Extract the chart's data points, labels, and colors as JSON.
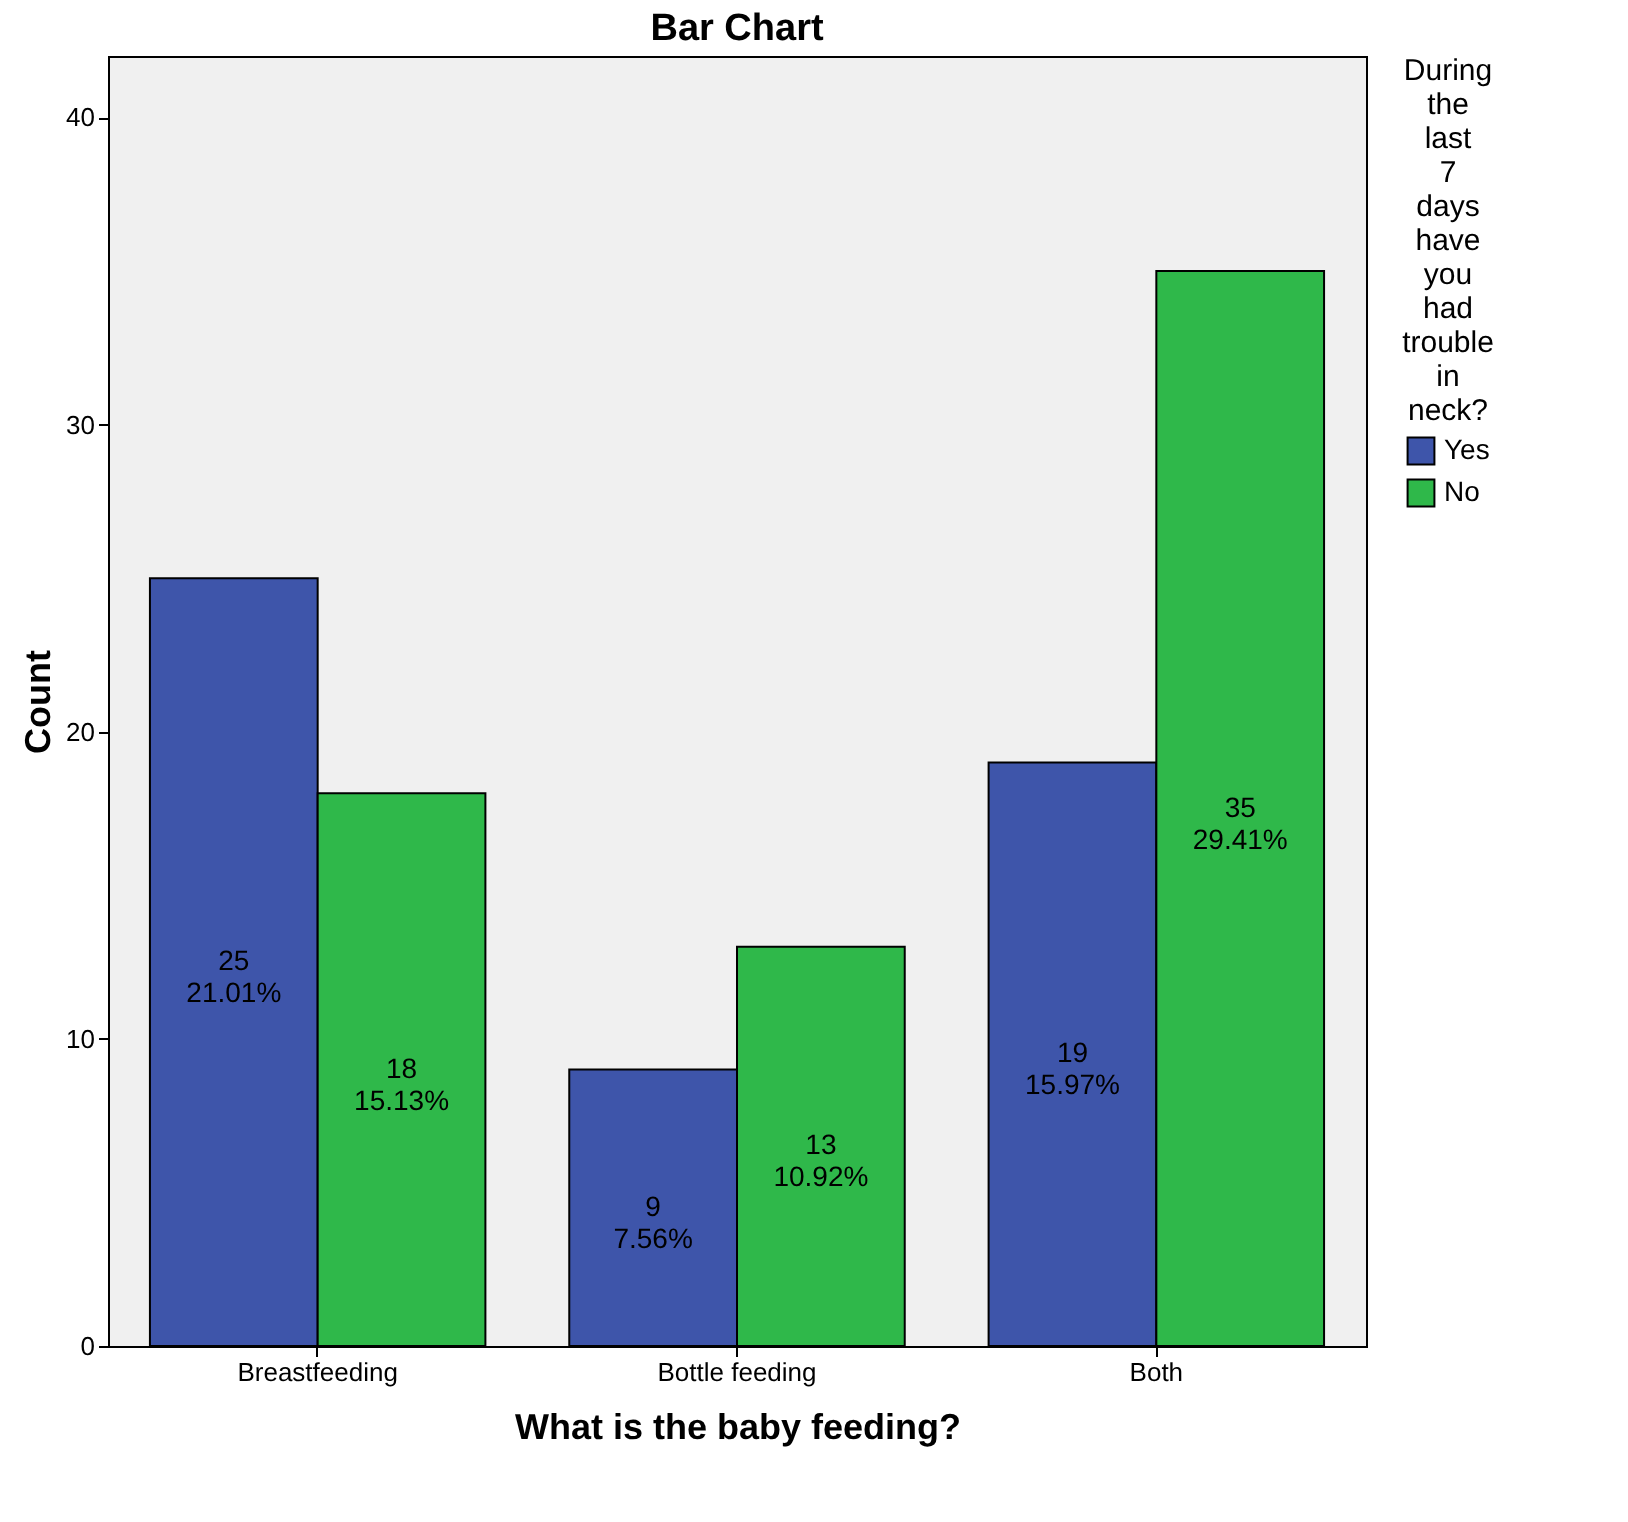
{
  "chart_data": {
    "type": "bar",
    "title": "Bar Chart",
    "xlabel": "What is the baby feeding?",
    "ylabel": "Count",
    "legend_title": "During the last 7 days have you had trouble in neck?",
    "categories": [
      "Breastfeeding",
      "Bottle feeding",
      "Both"
    ],
    "series": [
      {
        "name": "Yes",
        "color": "#3e55aa",
        "values": [
          25,
          9,
          19
        ],
        "value_labels": [
          "25\n21.01%",
          "9\n7.56%",
          "19\n15.97%"
        ]
      },
      {
        "name": "No",
        "color": "#2fb84a",
        "values": [
          18,
          13,
          35
        ],
        "value_labels": [
          "18\n15.13%",
          "13\n10.92%",
          "35\n29.41%"
        ]
      }
    ],
    "ylim": [
      0,
      42
    ],
    "yticks": [
      0,
      10,
      20,
      30,
      40
    ],
    "grid": false,
    "legend": "right"
  }
}
